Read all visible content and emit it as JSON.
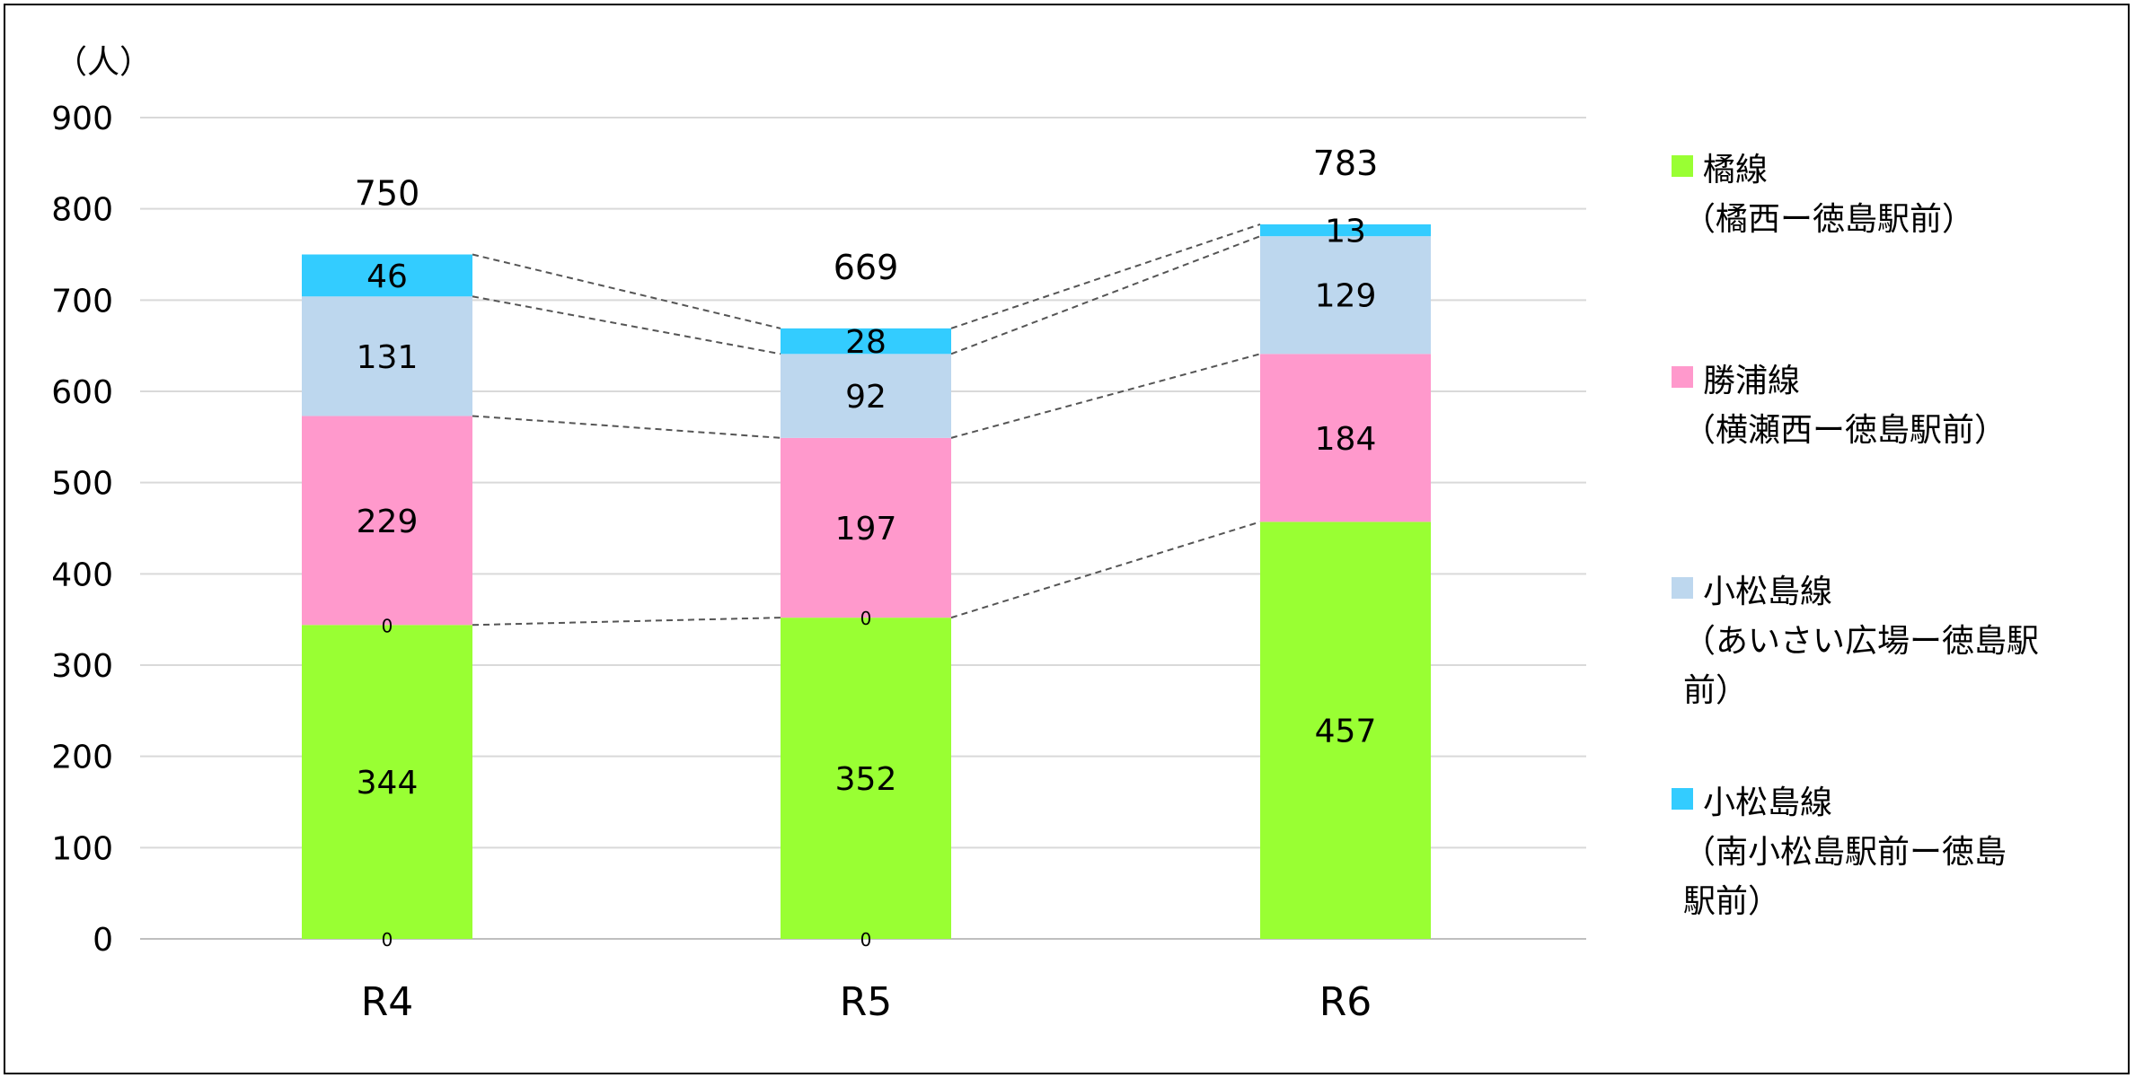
{
  "chart_data": {
    "type": "bar",
    "stacked": true,
    "unit_label": "（人）",
    "title": "",
    "xlabel": "",
    "ylabel": "",
    "ylim": [
      0,
      900
    ],
    "yticks": [
      0,
      100,
      200,
      300,
      400,
      500,
      600,
      700,
      800,
      900
    ],
    "ytick_labels": [
      "0",
      "100",
      "200",
      "300",
      "400",
      "500",
      "600",
      "700",
      "800",
      "900"
    ],
    "grid": true,
    "legend_position": "right",
    "connector_lines": "dashed",
    "categories": [
      "R4",
      "R5",
      "R6"
    ],
    "totals": [
      750,
      669,
      783
    ],
    "total_labels": [
      "750",
      "669",
      "783"
    ],
    "series": [
      {
        "name": "橘線",
        "legend_lines": [
          "橘線",
          "（橘西ー徳島駅前）"
        ],
        "color": "#99ff33",
        "values": [
          344,
          352,
          457
        ],
        "value_labels": [
          "344",
          "352",
          "457"
        ]
      },
      {
        "name": "勝浦線",
        "legend_lines": [
          "勝浦線",
          "（横瀬西ー徳島駅前）"
        ],
        "color": "#ff99cc",
        "values": [
          229,
          197,
          184
        ],
        "value_labels": [
          "229",
          "197",
          "184"
        ]
      },
      {
        "name": "小松島線",
        "legend_lines": [
          "小松島線",
          "（あいさい広場ー徳島駅",
          "前）"
        ],
        "color": "#bdd7ee",
        "values": [
          131,
          92,
          129
        ],
        "value_labels": [
          "131",
          "92",
          "129"
        ]
      },
      {
        "name": "小松島線",
        "legend_lines": [
          "小松島線",
          "（南小松島駅前ー徳島",
          "駅前）"
        ],
        "color": "#33ccff",
        "values": [
          46,
          28,
          13
        ],
        "value_labels": [
          "46",
          "28",
          "13"
        ]
      }
    ],
    "zero_markers": [
      {
        "category": "R4",
        "at": 0,
        "label": "0"
      },
      {
        "category": "R4",
        "at": 344,
        "label": "0"
      },
      {
        "category": "R5",
        "at": 0,
        "label": "0"
      },
      {
        "category": "R5",
        "at": 352,
        "label": "0"
      }
    ]
  }
}
